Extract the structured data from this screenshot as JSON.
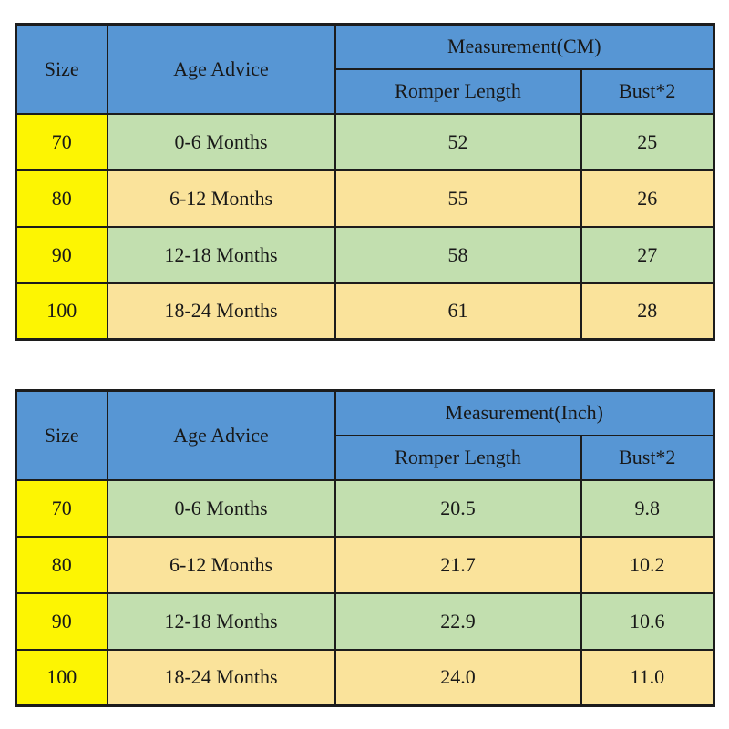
{
  "colors": {
    "header_blue": "#5796D4",
    "size_column_yellow": "#FDF502",
    "row_green": "#C2DFAF",
    "row_tan": "#FAE39B",
    "border_black": "#1c1c1c",
    "background": "#ffffff"
  },
  "tables": [
    {
      "headers": {
        "size": "Size",
        "age": "Age Advice",
        "measurement": "Measurement(CM)",
        "romper": "Romper Length",
        "bust": "Bust*2"
      },
      "rows": [
        {
          "size": "70",
          "age": "0-6 Months",
          "romper": "52",
          "bust": "25"
        },
        {
          "size": "80",
          "age": "6-12 Months",
          "romper": "55",
          "bust": "26"
        },
        {
          "size": "90",
          "age": "12-18 Months",
          "romper": "58",
          "bust": "27"
        },
        {
          "size": "100",
          "age": "18-24 Months",
          "romper": "61",
          "bust": "28"
        }
      ]
    },
    {
      "headers": {
        "size": "Size",
        "age": "Age Advice",
        "measurement": "Measurement(Inch)",
        "romper": "Romper Length",
        "bust": "Bust*2"
      },
      "rows": [
        {
          "size": "70",
          "age": "0-6 Months",
          "romper": "20.5",
          "bust": "9.8"
        },
        {
          "size": "80",
          "age": "6-12 Months",
          "romper": "21.7",
          "bust": "10.2"
        },
        {
          "size": "90",
          "age": "12-18 Months",
          "romper": "22.9",
          "bust": "10.6"
        },
        {
          "size": "100",
          "age": "18-24 Months",
          "romper": "24.0",
          "bust": "11.0"
        }
      ]
    }
  ]
}
